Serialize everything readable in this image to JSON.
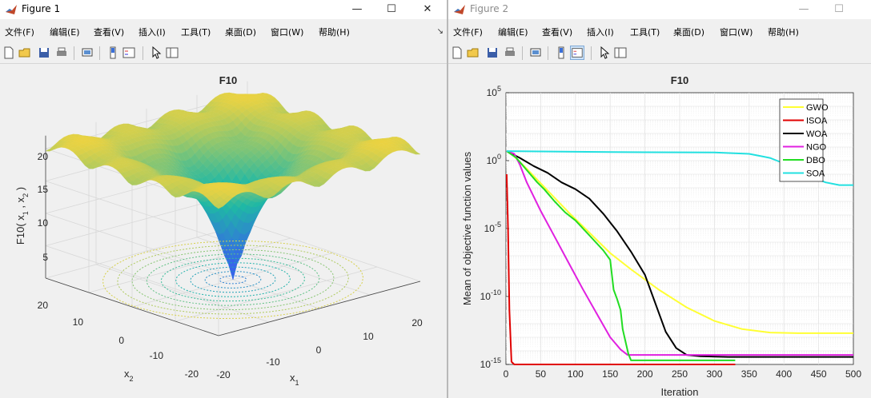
{
  "figure1": {
    "title": "Figure 1",
    "menu": [
      "文件(F)",
      "编辑(E)",
      "查看(V)",
      "插入(I)",
      "工具(T)",
      "桌面(D)",
      "窗口(W)",
      "帮助(H)"
    ],
    "plot": {
      "title": "F10",
      "zlabel": "F10( x",
      "zlabel_sub1": "1",
      "zlabel_mid": " , x",
      "zlabel_sub2": "2",
      "zlabel_end": " )",
      "x1label": "x",
      "x1label_sub": "1",
      "x2label": "x",
      "x2label_sub": "2",
      "zticks": [
        "5",
        "10",
        "15",
        "20"
      ],
      "x2ticks": [
        "20",
        "10",
        "0",
        "-10",
        "-20"
      ],
      "x1ticks": [
        "-20",
        "-10",
        "0",
        "10",
        "20"
      ],
      "colors": {
        "high": "#f9d43a",
        "mid": "#1fb8a5",
        "low": "#3a5cf2"
      }
    }
  },
  "figure2": {
    "title": "Figure 2",
    "menu": [
      "文件(F)",
      "编辑(E)",
      "查看(V)",
      "插入(I)",
      "工具(T)",
      "桌面(D)",
      "窗口(W)",
      "帮助(H)"
    ],
    "chart_data": {
      "type": "line",
      "title": "F10",
      "xlabel": "Iteration",
      "ylabel": "Mean of objective function values",
      "xlim": [
        0,
        500
      ],
      "ylim": [
        1e-15,
        100000.0
      ],
      "yscale": "log",
      "grid": true,
      "legend_position": "top-right",
      "xticks": [
        "0",
        "50",
        "100",
        "150",
        "200",
        "250",
        "300",
        "350",
        "400",
        "450",
        "500"
      ],
      "yticks": [
        {
          "base": "10",
          "exp": "5",
          "value": 5
        },
        {
          "base": "10",
          "exp": "0",
          "value": 0
        },
        {
          "base": "10",
          "exp": "-5",
          "value": -5
        },
        {
          "base": "10",
          "exp": "-10",
          "value": -10
        },
        {
          "base": "10",
          "exp": "-15",
          "value": -15
        }
      ],
      "series": [
        {
          "name": "GWO",
          "color": "#ffff33",
          "x": [
            1,
            10,
            30,
            60,
            90,
            120,
            150,
            180,
            220,
            260,
            300,
            340,
            380,
            420,
            500
          ],
          "log10y": [
            0.7,
            0.4,
            -0.6,
            -2.2,
            -3.8,
            -5.3,
            -6.8,
            -8.0,
            -9.5,
            -10.8,
            -11.8,
            -12.4,
            -12.65,
            -12.7,
            -12.7
          ]
        },
        {
          "name": "ISOA",
          "color": "#e00000",
          "x": [
            1,
            3,
            5,
            8,
            12,
            20,
            60,
            150,
            330
          ],
          "log10y": [
            -1.0,
            -5.0,
            -11.0,
            -14.8,
            -15.0,
            -15.0,
            -15.0,
            -15.0,
            -15.0
          ]
        },
        {
          "name": "WOA",
          "color": "#000000",
          "x": [
            1,
            20,
            40,
            60,
            80,
            100,
            120,
            140,
            160,
            180,
            200,
            215,
            230,
            245,
            260,
            280,
            320,
            400,
            500
          ],
          "log10y": [
            0.7,
            0.2,
            -0.4,
            -0.9,
            -1.6,
            -2.1,
            -2.8,
            -3.9,
            -5.2,
            -6.7,
            -8.4,
            -10.5,
            -12.6,
            -13.8,
            -14.3,
            -14.4,
            -14.45,
            -14.45,
            -14.45
          ]
        },
        {
          "name": "NGO",
          "color": "#e020e0",
          "x": [
            1,
            12,
            20,
            30,
            50,
            70,
            90,
            110,
            130,
            150,
            165,
            175,
            180,
            200,
            300,
            400,
            500
          ],
          "log10y": [
            0.7,
            0.5,
            -0.3,
            -1.6,
            -3.7,
            -5.6,
            -7.5,
            -9.4,
            -11.2,
            -13.0,
            -13.9,
            -14.3,
            -14.3,
            -14.3,
            -14.3,
            -14.3,
            -14.3
          ]
        },
        {
          "name": "DBO",
          "color": "#22dd22",
          "x": [
            1,
            15,
            30,
            45,
            55,
            70,
            85,
            100,
            120,
            140,
            150,
            155,
            160,
            165,
            168,
            172,
            176,
            180,
            200,
            260,
            300,
            330
          ],
          "log10y": [
            0.7,
            0.2,
            -0.7,
            -1.6,
            -2.1,
            -3.0,
            -3.8,
            -4.4,
            -5.5,
            -6.6,
            -7.3,
            -9.5,
            -10.2,
            -11.0,
            -12.4,
            -13.3,
            -14.2,
            -14.7,
            -14.7,
            -14.7,
            -14.7,
            -14.7
          ]
        },
        {
          "name": "SOA",
          "color": "#22e0e0",
          "x": [
            1,
            100,
            200,
            300,
            350,
            370,
            380,
            390,
            400,
            420,
            440,
            460,
            480,
            500
          ],
          "log10y": [
            0.7,
            0.65,
            0.62,
            0.6,
            0.5,
            0.3,
            0.2,
            0.0,
            -0.2,
            -0.7,
            -1.2,
            -1.6,
            -1.8,
            -1.8
          ]
        }
      ]
    }
  }
}
